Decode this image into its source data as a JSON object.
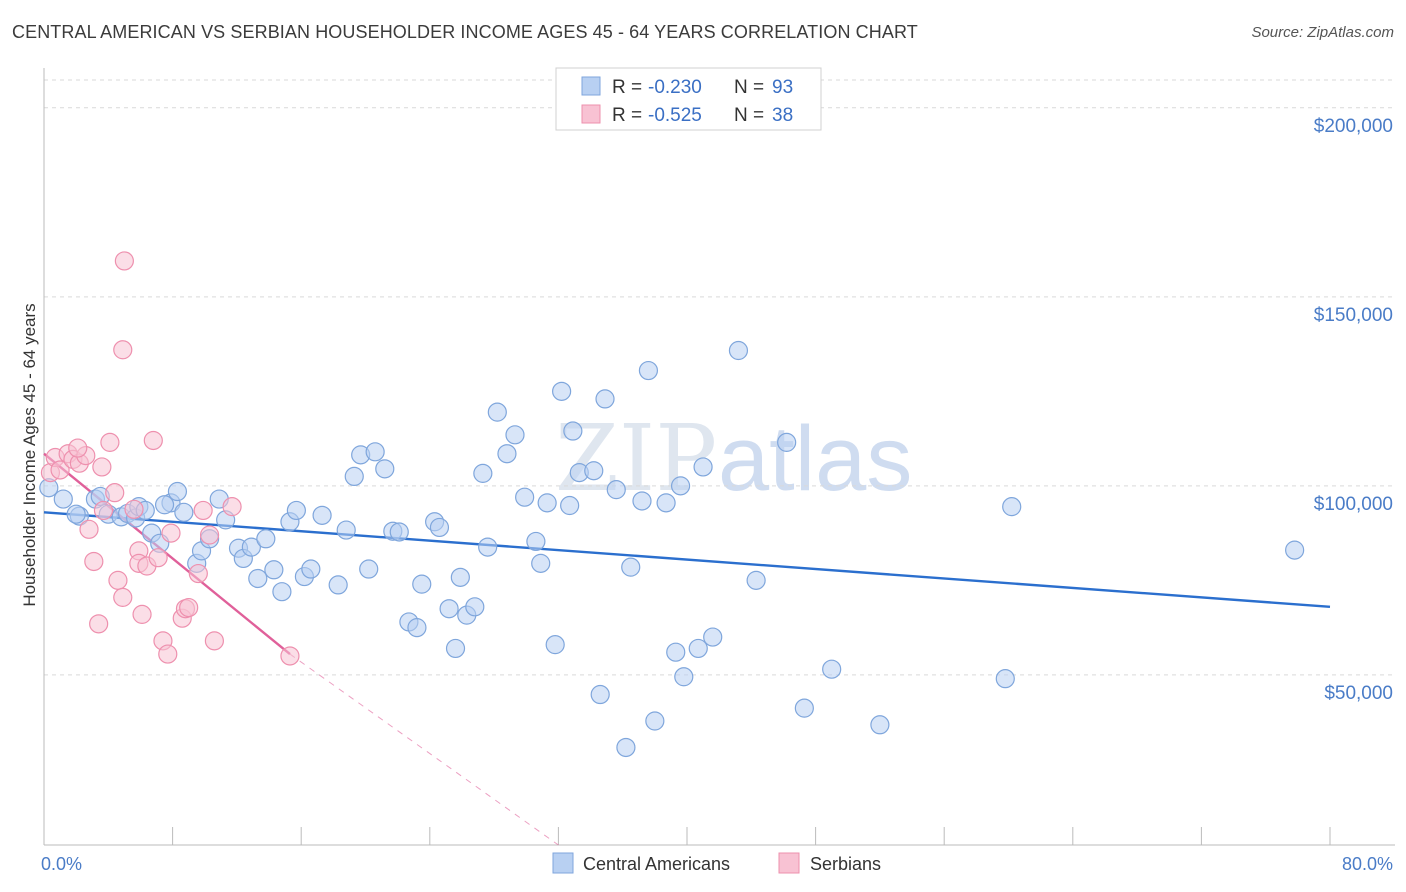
{
  "title": "CENTRAL AMERICAN VS SERBIAN HOUSEHOLDER INCOME AGES 45 - 64 YEARS CORRELATION CHART",
  "source": "Source: ZipAtlas.com",
  "watermark": {
    "zip": "ZIP",
    "atlas": "atlas"
  },
  "colors": {
    "blue_fill": "#b8d0f2",
    "blue_stroke": "#7fa6dc",
    "blue_line": "#2b6fce",
    "pink_fill": "#f8c2d3",
    "pink_stroke": "#ee90ae",
    "pink_line": "#e0609a",
    "grid": "#d9d9d9",
    "axis_label": "#4a7cc7"
  },
  "legend": {
    "rows": [
      {
        "r_label": "R = ",
        "r_value": "-0.230",
        "n_label": "N = ",
        "n_value": "93",
        "series": "blue"
      },
      {
        "r_label": "R = ",
        "r_value": "-0.525",
        "n_label": "N = ",
        "n_value": "38",
        "series": "pink"
      }
    ]
  },
  "chart_data": {
    "type": "scatter",
    "title": "CENTRAL AMERICAN VS SERBIAN HOUSEHOLDER INCOME AGES 45 - 64 YEARS CORRELATION CHART",
    "xlabel": "",
    "ylabel": "Householder Income Ages 45 - 64 years",
    "xlim": [
      0,
      80
    ],
    "ylim": [
      5000,
      210000
    ],
    "x_tick_labels": [
      {
        "value": 0,
        "label": "0.0%"
      },
      {
        "value": 80,
        "label": "80.0%"
      }
    ],
    "x_minor_ticks": [
      0,
      8,
      16,
      24,
      32,
      40,
      48,
      56,
      64,
      72,
      80
    ],
    "y_ticks": [
      {
        "value": 50000,
        "label": "$50,000"
      },
      {
        "value": 100000,
        "label": "$100,000"
      },
      {
        "value": 150000,
        "label": "$150,000"
      },
      {
        "value": 200000,
        "label": "$200,000"
      }
    ],
    "grid": true,
    "legend_position": "top-center",
    "series": [
      {
        "name": "Central Americans",
        "color": "blue",
        "r": -0.23,
        "n": 93,
        "trend": {
          "x": [
            0,
            80
          ],
          "y": [
            93000,
            68000
          ],
          "dashed_extension": false
        },
        "points": [
          [
            0.3,
            99500
          ],
          [
            1.2,
            96500
          ],
          [
            2.2,
            92000
          ],
          [
            3.2,
            96500
          ],
          [
            3.5,
            97200
          ],
          [
            4.0,
            92500
          ],
          [
            4.8,
            91800
          ],
          [
            5.2,
            92700
          ],
          [
            5.7,
            91500
          ],
          [
            5.9,
            94500
          ],
          [
            6.3,
            93500
          ],
          [
            6.7,
            87500
          ],
          [
            7.2,
            84800
          ],
          [
            7.9,
            95500
          ],
          [
            8.3,
            98500
          ],
          [
            8.7,
            93000
          ],
          [
            9.5,
            79500
          ],
          [
            9.8,
            82800
          ],
          [
            10.3,
            86000
          ],
          [
            10.9,
            96500
          ],
          [
            11.3,
            91000
          ],
          [
            12.1,
            83500
          ],
          [
            12.4,
            80800
          ],
          [
            12.9,
            83800
          ],
          [
            13.3,
            75500
          ],
          [
            13.8,
            86000
          ],
          [
            14.3,
            77800
          ],
          [
            14.8,
            72000
          ],
          [
            15.3,
            90500
          ],
          [
            15.7,
            93500
          ],
          [
            16.2,
            76000
          ],
          [
            16.6,
            78000
          ],
          [
            17.3,
            92200
          ],
          [
            18.3,
            73800
          ],
          [
            18.8,
            88300
          ],
          [
            19.3,
            102500
          ],
          [
            19.7,
            108200
          ],
          [
            20.2,
            78000
          ],
          [
            20.6,
            109000
          ],
          [
            21.2,
            104500
          ],
          [
            21.7,
            88000
          ],
          [
            22.1,
            87800
          ],
          [
            22.7,
            64000
          ],
          [
            23.2,
            62500
          ],
          [
            23.5,
            74000
          ],
          [
            24.3,
            90500
          ],
          [
            24.6,
            89000
          ],
          [
            25.2,
            67500
          ],
          [
            25.6,
            57000
          ],
          [
            25.9,
            75800
          ],
          [
            26.3,
            65800
          ],
          [
            26.8,
            68000
          ],
          [
            27.3,
            103300
          ],
          [
            27.6,
            83800
          ],
          [
            28.2,
            119500
          ],
          [
            28.8,
            108500
          ],
          [
            29.3,
            113500
          ],
          [
            29.9,
            97000
          ],
          [
            30.6,
            85300
          ],
          [
            30.9,
            79500
          ],
          [
            31.3,
            95500
          ],
          [
            31.8,
            58000
          ],
          [
            32.2,
            125000
          ],
          [
            32.7,
            94800
          ],
          [
            32.9,
            114500
          ],
          [
            33.3,
            103500
          ],
          [
            34.2,
            104000
          ],
          [
            34.6,
            44800
          ],
          [
            34.9,
            123000
          ],
          [
            35.6,
            99000
          ],
          [
            36.2,
            30800
          ],
          [
            36.5,
            78500
          ],
          [
            37.2,
            96000
          ],
          [
            37.6,
            130500
          ],
          [
            38.0,
            37800
          ],
          [
            38.7,
            95500
          ],
          [
            39.3,
            56000
          ],
          [
            39.6,
            100000
          ],
          [
            39.8,
            49500
          ],
          [
            40.7,
            57000
          ],
          [
            41.0,
            105000
          ],
          [
            41.6,
            60000
          ],
          [
            43.2,
            135800
          ],
          [
            44.3,
            75000
          ],
          [
            46.2,
            111500
          ],
          [
            47.3,
            41200
          ],
          [
            49.0,
            51500
          ],
          [
            52.0,
            36800
          ],
          [
            59.8,
            49000
          ],
          [
            60.2,
            94500
          ],
          [
            77.8,
            83000
          ],
          [
            2.0,
            92500
          ],
          [
            7.5,
            95000
          ]
        ]
      },
      {
        "name": "Serbians",
        "color": "pink",
        "r": -0.525,
        "n": 38,
        "trend": {
          "x": [
            0,
            15.3
          ],
          "y": [
            108500,
            55500
          ],
          "dashed_to": [
            32.0,
            5000
          ]
        },
        "points": [
          [
            0.4,
            103500
          ],
          [
            0.7,
            107500
          ],
          [
            1.0,
            104200
          ],
          [
            1.5,
            108500
          ],
          [
            1.8,
            107000
          ],
          [
            2.2,
            106000
          ],
          [
            2.6,
            108000
          ],
          [
            2.1,
            110000
          ],
          [
            2.8,
            88500
          ],
          [
            3.1,
            80000
          ],
          [
            3.4,
            63500
          ],
          [
            3.7,
            93500
          ],
          [
            3.6,
            105000
          ],
          [
            4.1,
            111500
          ],
          [
            4.4,
            98200
          ],
          [
            4.6,
            75000
          ],
          [
            4.9,
            70500
          ],
          [
            5.6,
            93800
          ],
          [
            5.9,
            82800
          ],
          [
            5.9,
            79500
          ],
          [
            6.1,
            66000
          ],
          [
            6.4,
            78800
          ],
          [
            6.8,
            112000
          ],
          [
            7.1,
            81000
          ],
          [
            7.4,
            59000
          ],
          [
            7.9,
            87500
          ],
          [
            7.7,
            55500
          ],
          [
            8.6,
            65000
          ],
          [
            8.8,
            67500
          ],
          [
            9.0,
            67800
          ],
          [
            9.6,
            76800
          ],
          [
            9.9,
            93500
          ],
          [
            10.3,
            87000
          ],
          [
            10.6,
            59000
          ],
          [
            11.7,
            94500
          ],
          [
            5.0,
            159500
          ],
          [
            4.9,
            136000
          ],
          [
            15.3,
            55000
          ]
        ]
      }
    ]
  },
  "bottom_legend": [
    {
      "label": "Central Americans",
      "series": "blue"
    },
    {
      "label": "Serbians",
      "series": "pink"
    }
  ]
}
